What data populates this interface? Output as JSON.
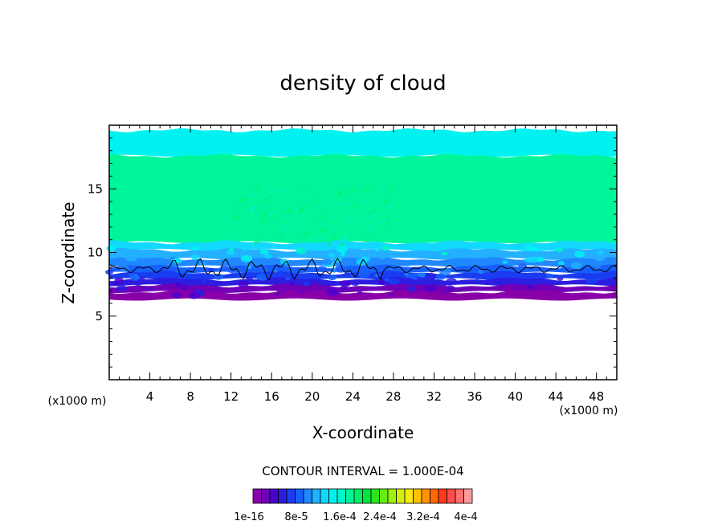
{
  "chart_data": {
    "type": "heatmap",
    "title": "density of cloud",
    "xlabel": "X-coordinate",
    "ylabel": "Z-coordinate",
    "x_unit_label": "(x1000 m)",
    "x_unit_label_right": "(x1000 m)",
    "xlim": [
      0,
      50
    ],
    "ylim": [
      0,
      20
    ],
    "x_ticks": [
      4,
      8,
      12,
      16,
      20,
      24,
      28,
      32,
      36,
      40,
      44,
      48
    ],
    "y_ticks": [
      5,
      10,
      15
    ],
    "contour_interval_text": "CONTOUR INTERVAL = 1.000E-04",
    "colorbar_labels": [
      "1e-16",
      "8e-5",
      "1.6e-4",
      "2.4e-4",
      "3.2e-4",
      "4e-4"
    ],
    "colorbar_colors": [
      "#8a00a8",
      "#6f00b8",
      "#4b00cc",
      "#2c1de0",
      "#1a3cf0",
      "#1760ff",
      "#1f88ff",
      "#22b0ff",
      "#11d8ff",
      "#00f2f0",
      "#00f5c8",
      "#00f59a",
      "#00f068",
      "#00e63c",
      "#2ae61c",
      "#66ee12",
      "#a0f010",
      "#d2f010",
      "#f7ea10",
      "#ffc000",
      "#ff9400",
      "#ff6a00",
      "#ff3a1a",
      "#ff4b4b",
      "#ff7070",
      "#ff9a9a"
    ],
    "bands": [
      {
        "z_bottom": 17.6,
        "z_top": 19.6,
        "color_index": 9
      },
      {
        "z_bottom": 10.8,
        "z_top": 17.6,
        "color_index": 11
      },
      {
        "z_bottom": 10.2,
        "z_top": 10.8,
        "color_index": 8
      },
      {
        "z_bottom": 9.5,
        "z_top": 10.2,
        "color_index": 7
      },
      {
        "z_bottom": 8.9,
        "z_top": 9.5,
        "color_index": 6
      },
      {
        "z_bottom": 8.4,
        "z_top": 8.9,
        "color_index": 5
      },
      {
        "z_bottom": 7.9,
        "z_top": 8.4,
        "color_index": 4
      },
      {
        "z_bottom": 7.4,
        "z_top": 7.9,
        "color_index": 3
      },
      {
        "z_bottom": 6.9,
        "z_top": 7.4,
        "color_index": 1
      },
      {
        "z_bottom": 6.3,
        "z_top": 6.9,
        "color_index": 0
      }
    ],
    "contour_line_z": 8.7
  }
}
